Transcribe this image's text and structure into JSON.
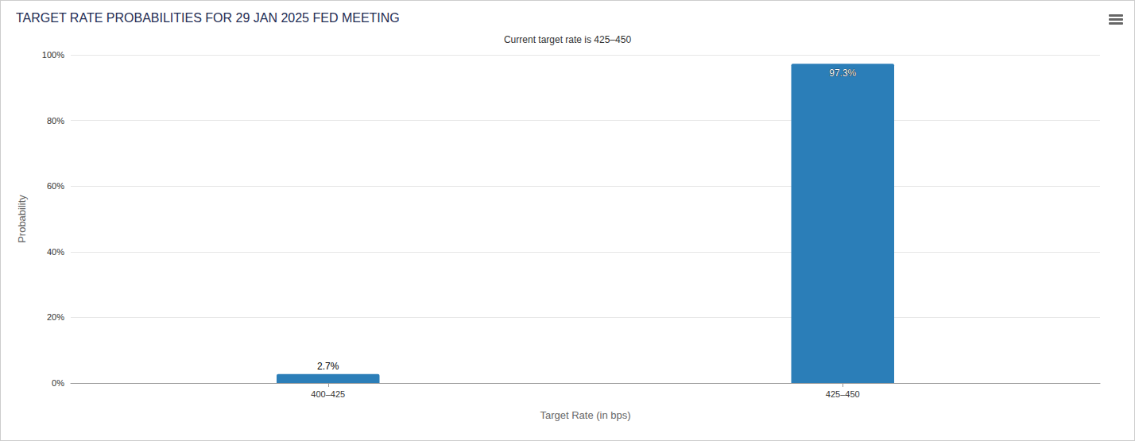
{
  "chart_data": {
    "type": "bar",
    "title": "TARGET RATE PROBABILITIES FOR 29 JAN 2025 FED MEETING",
    "subtitle": "Current target rate is 425–450",
    "x_label": "Target Rate (in bps)",
    "y_label": "Probability",
    "categories": [
      "400–425",
      "425–450"
    ],
    "values": [
      2.7,
      97.3
    ],
    "value_labels": [
      "2.7%",
      "97.3%"
    ],
    "color": "#2b7eb8",
    "ylim": [
      0,
      100
    ],
    "yticks": [
      {
        "value": 0,
        "label": "0%"
      },
      {
        "value": 20,
        "label": "20%"
      },
      {
        "value": 40,
        "label": "40%"
      },
      {
        "value": 60,
        "label": "60%"
      },
      {
        "value": 80,
        "label": "80%"
      },
      {
        "value": 100,
        "label": "100%"
      }
    ],
    "grid": true,
    "data_labels": true
  }
}
